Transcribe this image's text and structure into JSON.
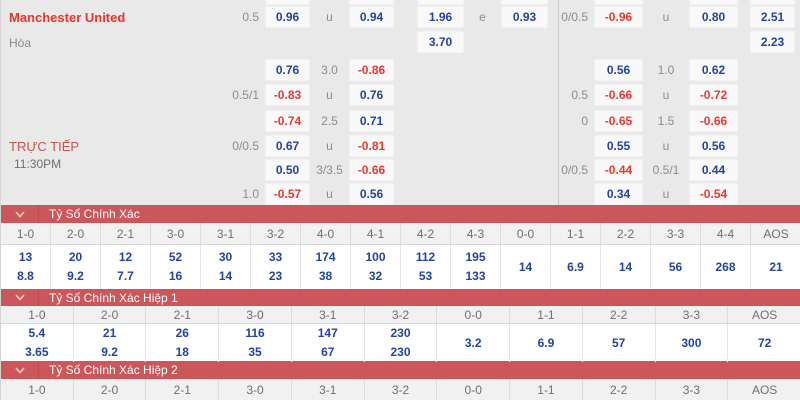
{
  "match": {
    "team": "Manchester United",
    "draw_label": "Hòa",
    "live_label": "TRỰC TIẾP",
    "time": "11:30PM"
  },
  "colors": {
    "panel_background": "#e9e9e9",
    "odds_box_background": "#f9f9f9",
    "odds_positive_blue": "#2443a0",
    "odds_negative_red": "#e8392f",
    "section_bar_red": "#cb575b",
    "team_name_red": "#e8352e",
    "label_gray": "#8c8c8c"
  },
  "icons": {
    "section_toggle": "chevron-down-icon"
  },
  "top_odds": {
    "rows": [
      {
        "line1": "0.5",
        "odds1": "0.96",
        "mid1": "u",
        "odds2": "0.94",
        "odds3": "1.96",
        "mid2": "e",
        "odds4": "0.93",
        "line2": "0/0.5",
        "odds5": "-0.96",
        "mid3": "u",
        "odds6": "0.80",
        "odds7": "2.51"
      },
      {
        "odds3": "3.70",
        "odds7": "2.23"
      },
      {
        "odds1": "0.76",
        "mid1": "3.0",
        "odds2": "-0.86",
        "odds5": "0.56",
        "mid3": "1.0",
        "odds6": "0.62"
      },
      {
        "line1": "0.5/1",
        "odds1": "-0.83",
        "mid1": "u",
        "odds2": "0.76",
        "line2": "0.5",
        "odds5": "-0.66",
        "mid3": "u",
        "odds6": "-0.72"
      },
      {
        "odds1": "-0.74",
        "mid1": "2.5",
        "odds2": "0.71",
        "line2": "0",
        "odds5": "-0.65",
        "mid3": "1.5",
        "odds6": "-0.66"
      },
      {
        "line1": "0/0.5",
        "odds1": "0.67",
        "mid1": "u",
        "odds2": "-0.81",
        "odds5": "0.55",
        "mid3": "u",
        "odds6": "0.56"
      },
      {
        "odds1": "0.50",
        "mid1": "3/3.5",
        "odds2": "-0.66",
        "line2": "0/0.5",
        "odds5": "-0.44",
        "mid3": "0.5/1",
        "odds6": "0.44"
      },
      {
        "line1": "1.0",
        "odds1": "-0.57",
        "mid1": "u",
        "odds2": "0.56",
        "odds5": "0.34",
        "mid3": "u",
        "odds6": "-0.54"
      }
    ]
  },
  "sections": [
    {
      "title": "Tỷ Số Chính Xác",
      "columns": [
        {
          "score": "1-0",
          "values": [
            "13",
            "8.8"
          ]
        },
        {
          "score": "2-0",
          "values": [
            "20",
            "9.2"
          ]
        },
        {
          "score": "2-1",
          "values": [
            "12",
            "7.7"
          ]
        },
        {
          "score": "3-0",
          "values": [
            "52",
            "16"
          ]
        },
        {
          "score": "3-1",
          "values": [
            "30",
            "14"
          ]
        },
        {
          "score": "3-2",
          "values": [
            "33",
            "23"
          ]
        },
        {
          "score": "4-0",
          "values": [
            "174",
            "38"
          ]
        },
        {
          "score": "4-1",
          "values": [
            "100",
            "32"
          ]
        },
        {
          "score": "4-2",
          "values": [
            "112",
            "53"
          ]
        },
        {
          "score": "4-3",
          "values": [
            "195",
            "133"
          ]
        },
        {
          "score": "0-0",
          "values": [
            "14"
          ]
        },
        {
          "score": "1-1",
          "values": [
            "6.9"
          ]
        },
        {
          "score": "2-2",
          "values": [
            "14"
          ]
        },
        {
          "score": "3-3",
          "values": [
            "56"
          ]
        },
        {
          "score": "4-4",
          "values": [
            "268"
          ]
        },
        {
          "score": "AOS",
          "values": [
            "21"
          ]
        }
      ]
    },
    {
      "title": "Tỷ Số Chính Xác Hiệp 1",
      "columns": [
        {
          "score": "1-0",
          "values": [
            "5.4",
            "3.65"
          ]
        },
        {
          "score": "2-0",
          "values": [
            "21",
            "9.2"
          ]
        },
        {
          "score": "2-1",
          "values": [
            "26",
            "18"
          ]
        },
        {
          "score": "3-0",
          "values": [
            "116",
            "35"
          ]
        },
        {
          "score": "3-1",
          "values": [
            "147",
            "67"
          ]
        },
        {
          "score": "3-2",
          "values": [
            "230",
            "230"
          ]
        },
        {
          "score": "0-0",
          "values": [
            "3.2"
          ]
        },
        {
          "score": "1-1",
          "values": [
            "6.9"
          ]
        },
        {
          "score": "2-2",
          "values": [
            "57"
          ]
        },
        {
          "score": "3-3",
          "values": [
            "300"
          ]
        },
        {
          "score": "AOS",
          "values": [
            "72"
          ]
        }
      ]
    },
    {
      "title": "Tỷ Số Chính Xác Hiệp 2",
      "columns": [
        {
          "score": "1-0",
          "values": []
        },
        {
          "score": "2-0",
          "values": []
        },
        {
          "score": "2-1",
          "values": []
        },
        {
          "score": "3-0",
          "values": []
        },
        {
          "score": "3-1",
          "values": []
        },
        {
          "score": "3-2",
          "values": []
        },
        {
          "score": "0-0",
          "values": []
        },
        {
          "score": "1-1",
          "values": []
        },
        {
          "score": "2-2",
          "values": []
        },
        {
          "score": "3-3",
          "values": []
        },
        {
          "score": "AOS",
          "values": []
        }
      ]
    }
  ]
}
